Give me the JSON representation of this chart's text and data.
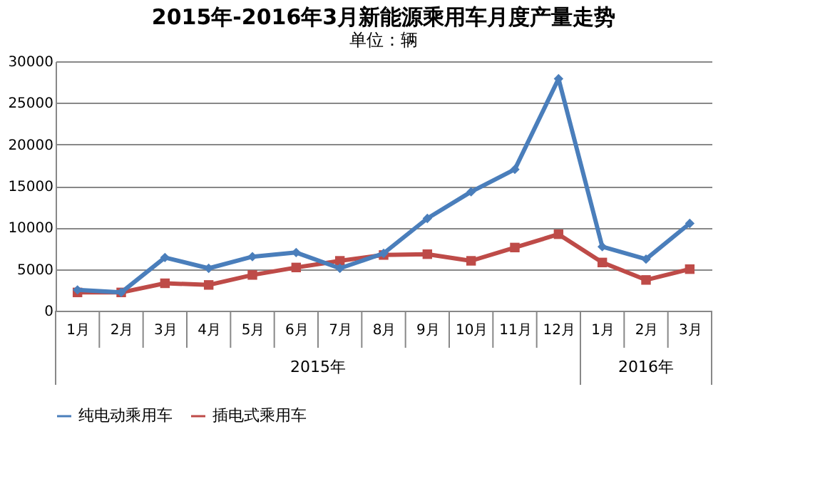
{
  "chart_data": {
    "type": "line",
    "title": "2015年-2016年3月新能源乘用车月度产量走势",
    "subtitle": "单位：辆",
    "categories": [
      "1月",
      "2月",
      "3月",
      "4月",
      "5月",
      "6月",
      "7月",
      "8月",
      "9月",
      "10月",
      "11月",
      "12月",
      "1月",
      "2月",
      "3月"
    ],
    "series": [
      {
        "name": "纯电动乘用车",
        "color": "#4a7ebb",
        "marker": "diamond",
        "values": [
          2500,
          2200,
          6400,
          5100,
          6500,
          7000,
          5100,
          6900,
          11100,
          14300,
          17000,
          27900,
          7700,
          6200,
          10500
        ]
      },
      {
        "name": "插电式乘用车",
        "color": "#be4b48",
        "marker": "square",
        "values": [
          2200,
          2200,
          3300,
          3100,
          4300,
          5200,
          6000,
          6700,
          6800,
          6000,
          7600,
          9200,
          5800,
          3700,
          5000
        ]
      }
    ],
    "annotations": [
      "2015年",
      "2016年"
    ],
    "ylim": [
      0,
      30000
    ],
    "yticks": [
      0,
      5000,
      10000,
      15000,
      20000,
      25000,
      30000
    ],
    "grid": "y",
    "legend": "bottom"
  }
}
